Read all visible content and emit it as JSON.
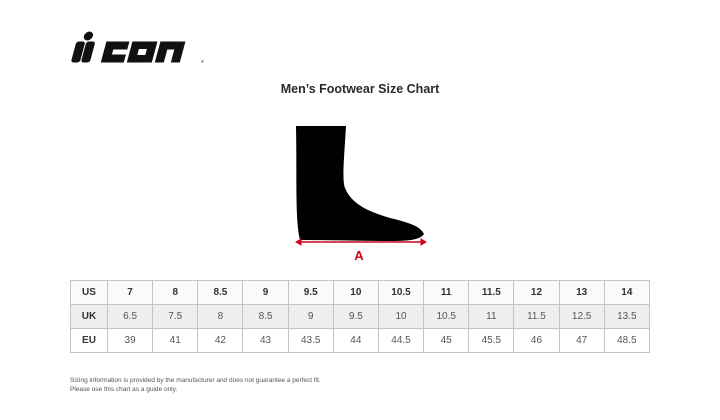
{
  "brand": {
    "logo_text": "icon"
  },
  "title": "Men’s Footwear Size Chart",
  "diagram": {
    "measure_label": "A",
    "accent_color": "#d0021b"
  },
  "size_table": {
    "rows": [
      {
        "label": "US",
        "values": [
          "7",
          "8",
          "8.5",
          "9",
          "9.5",
          "10",
          "10.5",
          "11",
          "11.5",
          "12",
          "13",
          "14"
        ]
      },
      {
        "label": "UK",
        "values": [
          "6.5",
          "7.5",
          "8",
          "8.5",
          "9",
          "9.5",
          "10",
          "10.5",
          "11",
          "11.5",
          "12.5",
          "13.5"
        ]
      },
      {
        "label": "EU",
        "values": [
          "39",
          "41",
          "42",
          "43",
          "43.5",
          "44",
          "44.5",
          "45",
          "45.5",
          "46",
          "47",
          "48.5"
        ]
      }
    ]
  },
  "footnote": {
    "line1": "Sizing information is provided by the manufacturer and does not guarantee a perfect fit.",
    "line2": "Please use this chart as a guide only."
  }
}
